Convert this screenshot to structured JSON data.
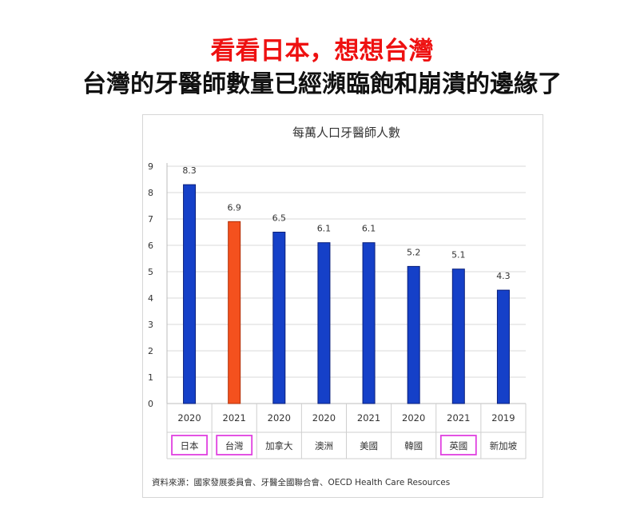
{
  "headline": {
    "line1": "看看日本，想想台灣",
    "line2": "台灣的牙醫師數量已經瀕臨飽和崩潰的邊緣了"
  },
  "colors": {
    "headline1": "#ee1111",
    "bar": "#1540c8",
    "bar_edge": "#0a1f7a",
    "highlight_bar": "#f4511e",
    "highlight_edge": "#b02d05",
    "country_box": "#e040e0",
    "grid": "#d9d9d9"
  },
  "source_note": "資料來源：國家發展委員會、牙醫全國聯合會、OECD Health Care Resources",
  "chart_data": {
    "type": "bar",
    "title": "每萬人口牙醫師人數",
    "categories": [
      "日本",
      "台灣",
      "加拿大",
      "澳洲",
      "美國",
      "韓國",
      "英國",
      "新加坡"
    ],
    "years": [
      "2020",
      "2021",
      "2020",
      "2020",
      "2021",
      "2020",
      "2021",
      "2019"
    ],
    "values": [
      8.3,
      6.9,
      6.5,
      6.1,
      6.1,
      5.2,
      5.1,
      4.3
    ],
    "highlighted_bar": "台灣",
    "boxed_categories": [
      "日本",
      "台灣",
      "英國"
    ],
    "ylim": [
      0,
      9
    ],
    "yticks": [
      0,
      1,
      2,
      3,
      4,
      5,
      6,
      7,
      8,
      9
    ],
    "xlabel": "",
    "ylabel": "",
    "grid": true,
    "legend": false,
    "data_labels": true
  }
}
